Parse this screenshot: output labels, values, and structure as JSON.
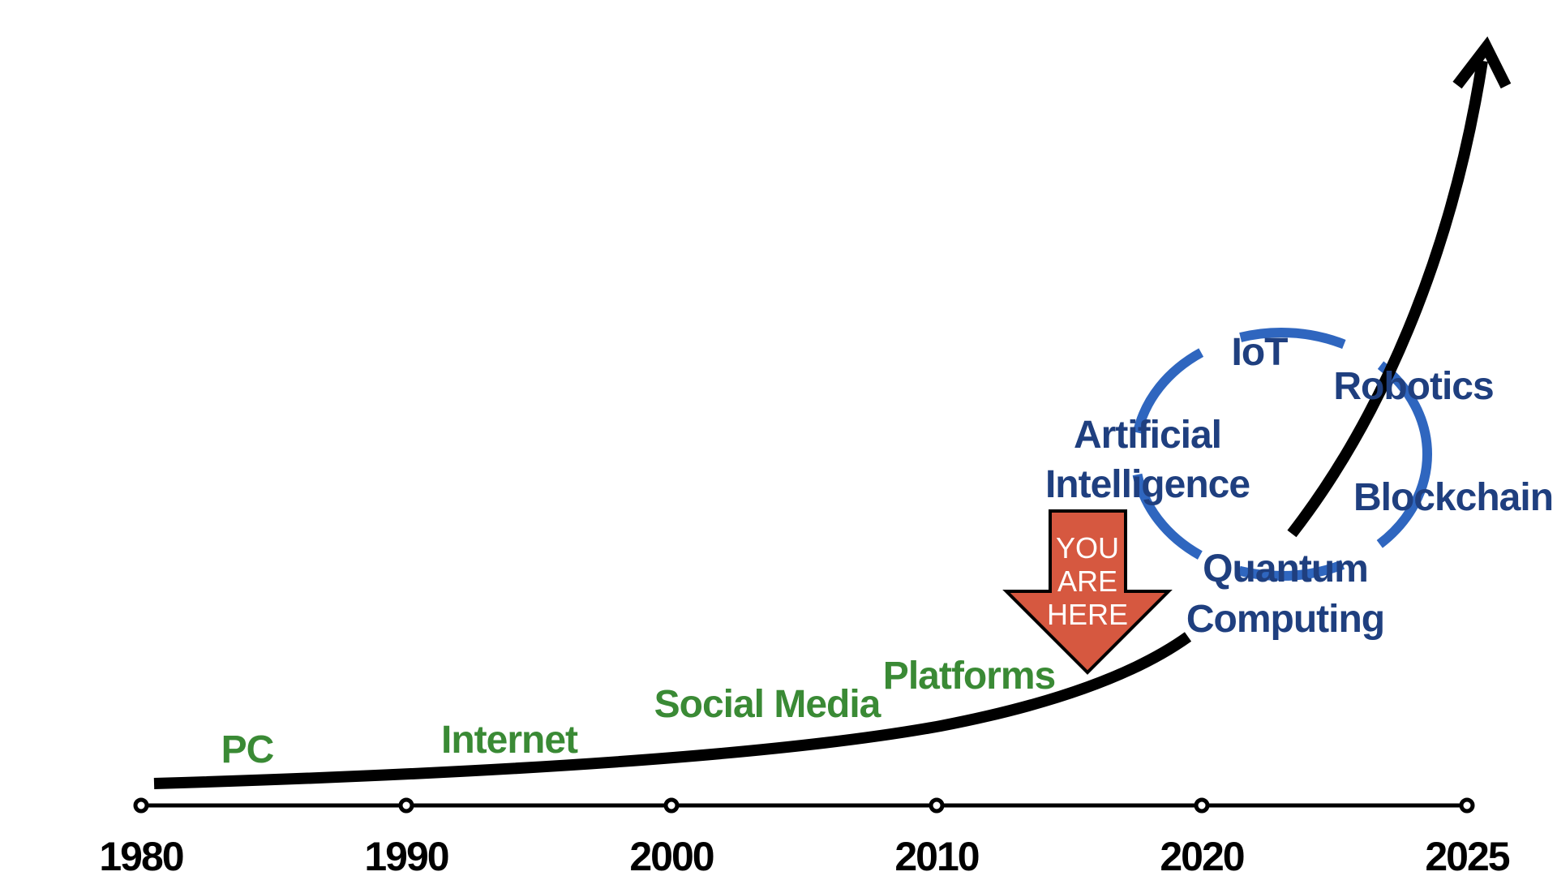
{
  "colors": {
    "past": "#3a8a35",
    "future": "#1f3f7f",
    "dashed_ring": "#2f66bf",
    "arrow_fill": "#d65840",
    "line": "#000000"
  },
  "timeline": {
    "years": [
      "1980",
      "1990",
      "2000",
      "2010",
      "2020",
      "2025"
    ]
  },
  "past_eras": [
    "PC",
    "Internet",
    "Social Media",
    "Platforms"
  ],
  "future_tech": {
    "iot": "IoT",
    "robotics": "Robotics",
    "ai_line1": "Artificial",
    "ai_line2": "Intelligence",
    "blockchain": "Blockchain",
    "quantum_line1": "Quantum",
    "quantum_line2": "Computing"
  },
  "marker": {
    "line1": "YOU",
    "line2": "ARE",
    "line3": "HERE"
  }
}
